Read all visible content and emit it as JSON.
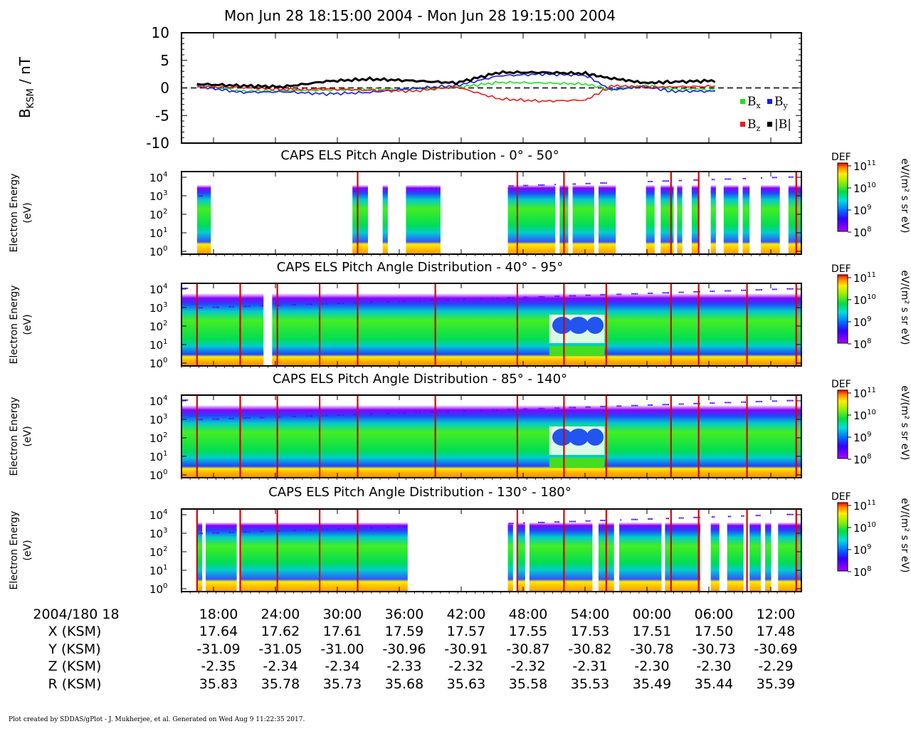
{
  "title": "Mon Jun 28 18:15:00 2004 - Mon Jun 28 19:15:00 2004",
  "footer": "Plot created by SDDAS/gPlot - J. Mukherjee, et al.  Generated on Wed Aug 9 11:22:35 2017.",
  "colors": {
    "bx": "#22dd22",
    "by": "#1a1aee",
    "bz": "#ee1a1a",
    "bmag": "#000000",
    "marker": "#dd0000"
  },
  "colorbar": {
    "label": "DEF",
    "units": "eV/(m² s sr eV)",
    "exponents": [
      "11",
      "10",
      "9",
      "8"
    ]
  },
  "chart_data": [
    {
      "type": "line",
      "ylabel": "B",
      "ylabel_sub": "KSM",
      "ylabel_unit": " / nT",
      "ylim": [
        -10,
        10
      ],
      "yticks": [
        "10",
        "5",
        "0",
        "-5",
        "-10"
      ],
      "x_minutes": [
        0,
        5,
        10,
        15,
        20,
        25,
        30,
        35,
        40,
        45,
        48,
        52,
        55,
        60
      ],
      "series": [
        {
          "name": "Bx",
          "sub": "x",
          "color": "#22dd22",
          "values": [
            0.6,
            -0.6,
            -0.5,
            -0.4,
            -0.3,
            -0.2,
            0.1,
            1.0,
            0.9,
            0.7,
            -0.3,
            0.4,
            -0.2,
            -0.4
          ]
        },
        {
          "name": "By",
          "sub": "y",
          "color": "#1a1aee",
          "values": [
            0.3,
            -0.8,
            -0.7,
            -1.1,
            -0.8,
            -0.1,
            0.4,
            2.2,
            2.5,
            2.3,
            -0.4,
            0.2,
            -0.6,
            -0.6
          ]
        },
        {
          "name": "Bz",
          "sub": "z",
          "color": "#ee1a1a",
          "values": [
            0.2,
            0.1,
            -0.3,
            -0.2,
            -0.4,
            -0.6,
            0.2,
            -2.0,
            -2.4,
            -2.2,
            0.3,
            0.1,
            0.2,
            0.3
          ]
        },
        {
          "name": "|B|",
          "sub": "",
          "color": "#000000",
          "values": [
            0.7,
            0.4,
            0.2,
            1.2,
            1.6,
            1.3,
            0.9,
            2.8,
            2.8,
            2.6,
            1.7,
            0.9,
            1.1,
            1.3
          ]
        }
      ]
    },
    {
      "type": "heatmap",
      "title": "CAPS ELS Pitch Angle Distribution - 0° - 50°",
      "ylabel": "Electron Energy",
      "yunit": "(eV)",
      "yticks": [
        "4",
        "3",
        "2",
        "1",
        "0"
      ],
      "coverage_minutes": [
        [
          0,
          1.6
        ],
        [
          18,
          19.8
        ],
        [
          21.5,
          22.1
        ],
        [
          24.2,
          28.2
        ],
        [
          36,
          41.5
        ],
        [
          42,
          43
        ],
        [
          43.5,
          46
        ],
        [
          46.5,
          48.5
        ],
        [
          52,
          53
        ],
        [
          53.7,
          55.2
        ],
        [
          55.6,
          56.2
        ],
        [
          57.3,
          58.1
        ],
        [
          59.5,
          60.1
        ],
        [
          61,
          62.7
        ],
        [
          63.2,
          64
        ],
        [
          65.3,
          67.5
        ],
        [
          68.5,
          70
        ]
      ],
      "markers_minutes": [
        18.6,
        37.1,
        42.5,
        54.9,
        58.1,
        69.4
      ]
    },
    {
      "type": "heatmap",
      "title": "CAPS ELS Pitch Angle Distribution - 40° - 95°",
      "ylabel": "Electron Energy",
      "yunit": "(eV)",
      "yticks": [
        "4",
        "3",
        "2",
        "1",
        "0"
      ],
      "coverage_minutes": [
        [
          -1.8,
          7.7
        ],
        [
          8.7,
          70
        ]
      ],
      "markers_minutes": [
        0,
        5,
        9.3,
        14.2,
        18.6,
        27.6,
        37.1,
        42.5,
        47.4,
        54.9,
        58.1,
        63.7,
        69.4
      ]
    },
    {
      "type": "heatmap",
      "title": "CAPS ELS Pitch Angle Distribution - 85° - 140°",
      "ylabel": "Electron Energy",
      "yunit": "(eV)",
      "yticks": [
        "4",
        "3",
        "2",
        "1",
        "0"
      ],
      "coverage_minutes": [
        [
          -1.8,
          70
        ]
      ],
      "markers_minutes": [
        0,
        5,
        9.3,
        14.2,
        18.6,
        27.6,
        37.1,
        42.5,
        47.4,
        54.9,
        58.1,
        63.7,
        69.4
      ]
    },
    {
      "type": "heatmap",
      "title": "CAPS ELS Pitch Angle Distribution - 130° - 180°",
      "ylabel": "Electron Energy",
      "yunit": "(eV)",
      "yticks": [
        "4",
        "3",
        "2",
        "1",
        "0"
      ],
      "coverage_minutes": [
        [
          0,
          0.6
        ],
        [
          1,
          4.6
        ],
        [
          5,
          24.4
        ],
        [
          36,
          36.6
        ],
        [
          37,
          38
        ],
        [
          38.5,
          45.8
        ],
        [
          46.5,
          48.3
        ],
        [
          48.9,
          53.8
        ],
        [
          54.2,
          58.3
        ],
        [
          59.5,
          60.5
        ],
        [
          61.4,
          63.3
        ],
        [
          64,
          65.3
        ],
        [
          65.8,
          66.5
        ],
        [
          67.3,
          70
        ]
      ],
      "markers_minutes": [
        0,
        5,
        9.3,
        14.2,
        18.6,
        37.1,
        42.5,
        47.4,
        54.9,
        58.1,
        63.7,
        69.4
      ]
    }
  ],
  "x_axis": {
    "date_label": "2004/180 18",
    "row_labels": [
      "X (KSM)",
      "Y (KSM)",
      "Z (KSM)",
      "R (KSM)"
    ],
    "ticks": [
      {
        "time": "18:00",
        "minute": 3,
        "X": "17.64",
        "Y": "-31.09",
        "Z": "-2.35",
        "R": "35.83"
      },
      {
        "time": "24:00",
        "minute": 9,
        "X": "17.62",
        "Y": "-31.05",
        "Z": "-2.34",
        "R": "35.78"
      },
      {
        "time": "30:00",
        "minute": 15,
        "X": "17.61",
        "Y": "-31.00",
        "Z": "-2.34",
        "R": "35.73"
      },
      {
        "time": "36:00",
        "minute": 21,
        "X": "17.59",
        "Y": "-30.96",
        "Z": "-2.33",
        "R": "35.68"
      },
      {
        "time": "42:00",
        "minute": 27,
        "X": "17.57",
        "Y": "-30.91",
        "Z": "-2.32",
        "R": "35.63"
      },
      {
        "time": "48:00",
        "minute": 33,
        "X": "17.55",
        "Y": "-30.87",
        "Z": "-2.32",
        "R": "35.58"
      },
      {
        "time": "54:00",
        "minute": 39,
        "X": "17.53",
        "Y": "-30.82",
        "Z": "-2.31",
        "R": "35.53"
      },
      {
        "time": "00:00",
        "minute": 45,
        "X": "17.51",
        "Y": "-30.78",
        "Z": "-2.30",
        "R": "35.49"
      },
      {
        "time": "06:00",
        "minute": 51,
        "X": "17.50",
        "Y": "-30.73",
        "Z": "-2.30",
        "R": "35.44"
      },
      {
        "time": "12:00",
        "minute": 57,
        "X": "17.48",
        "Y": "-30.69",
        "Z": "-2.29",
        "R": "35.39"
      }
    ]
  }
}
